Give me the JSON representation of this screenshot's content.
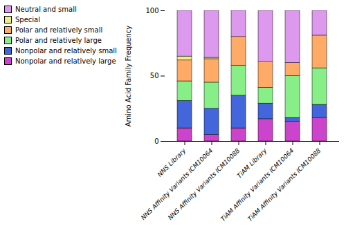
{
  "chart_data": {
    "type": "bar",
    "stacked": true,
    "categories": [
      "NNS Library",
      "NNS Affinity Variants ICM10064",
      "NNS Affinity Variants ICM10088",
      "TiAM Library",
      "TiAM Affinity Variants ICM10064",
      "TiAM Affinity Variants ICM10088"
    ],
    "series": [
      {
        "name": "Nonpolar and relatively large",
        "color": "#CC44CC",
        "values": [
          10,
          5,
          10,
          17,
          15,
          18
        ]
      },
      {
        "name": "Nonpolar and relatively small",
        "color": "#4466DD",
        "values": [
          21,
          20,
          25,
          12,
          3,
          10
        ]
      },
      {
        "name": "Polar and relatively large",
        "color": "#88EE88",
        "values": [
          15,
          20,
          23,
          12,
          32,
          28
        ]
      },
      {
        "name": "Polar and relatively small",
        "color": "#FFAA66",
        "values": [
          16,
          18,
          22,
          20,
          10,
          25
        ]
      },
      {
        "name": "Special",
        "color": "#EEEE88",
        "values": [
          3,
          1,
          0,
          0,
          0,
          0
        ]
      },
      {
        "name": "Neutral and small",
        "color": "#DD99EE",
        "values": [
          35,
          36,
          20,
          39,
          40,
          19
        ]
      }
    ],
    "ylabel": "Amino Acid Family Frequency",
    "ylim": [
      0,
      100
    ],
    "yticks": [
      0,
      50,
      100
    ],
    "grid": false,
    "legend": "upper left"
  }
}
